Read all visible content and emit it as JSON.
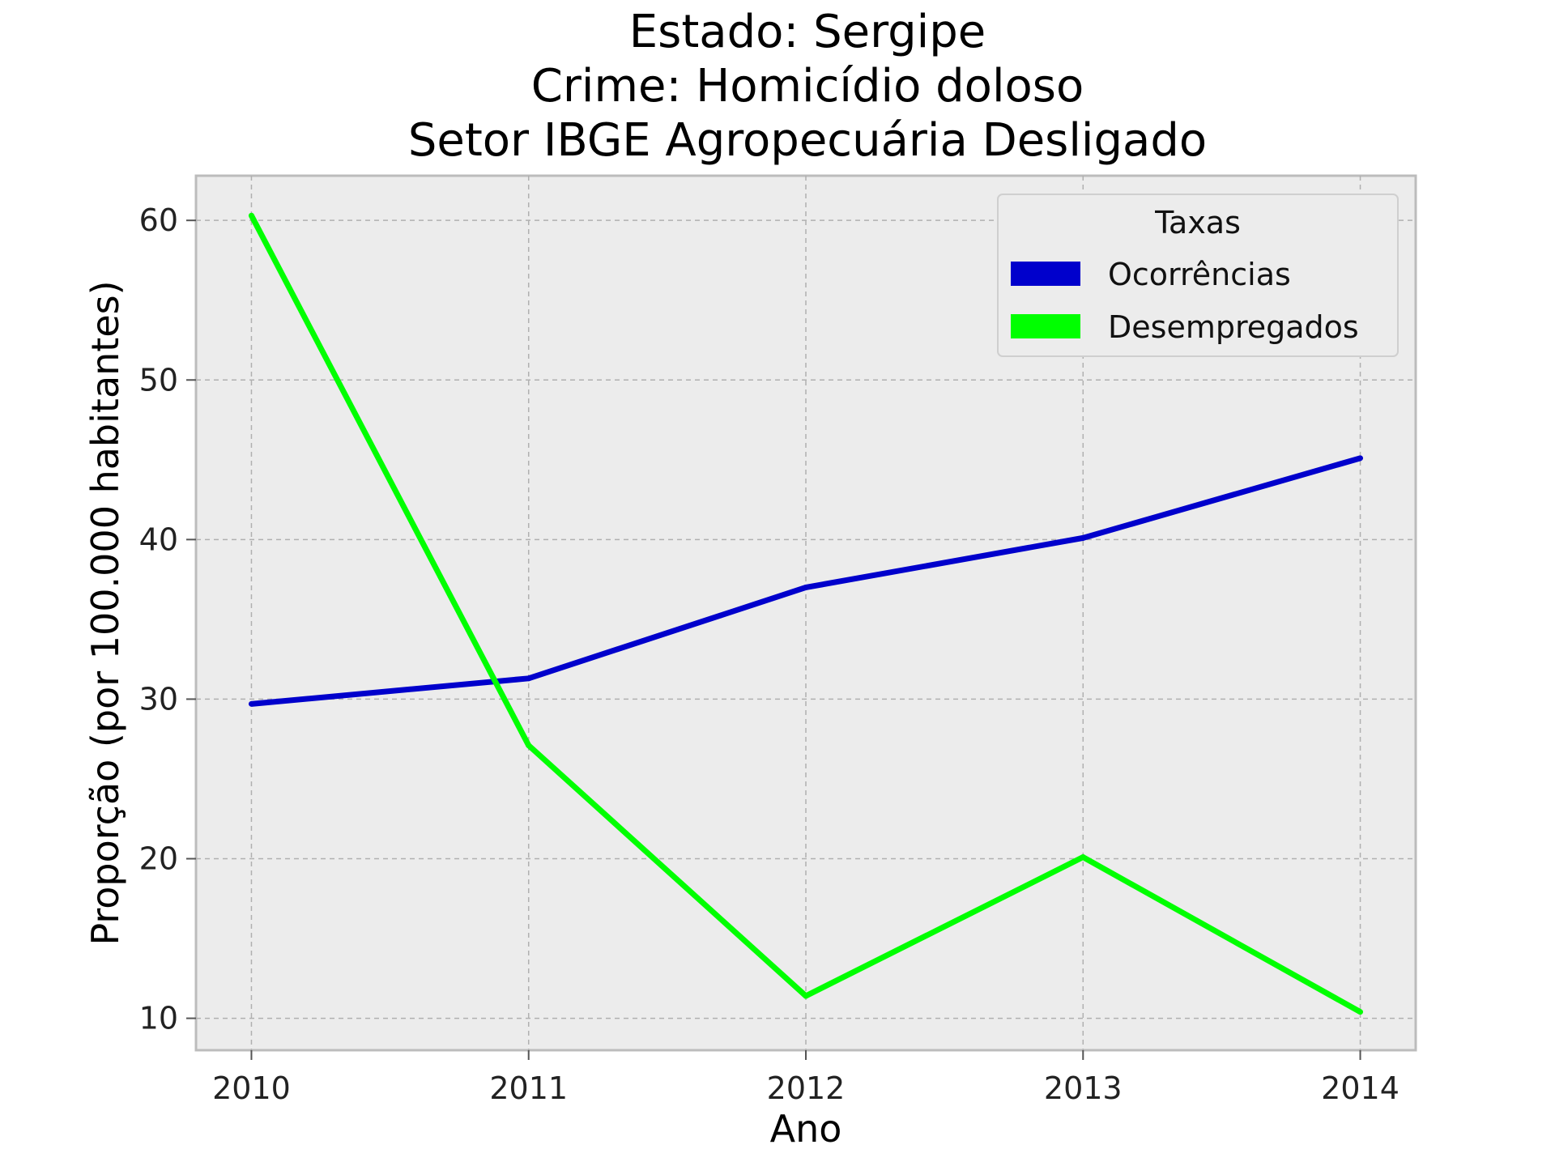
{
  "chart_data": {
    "type": "line",
    "title_lines": [
      "Estado: Sergipe",
      "Crime: Homicídio doloso",
      "Setor IBGE  Agropecuária   Desligado"
    ],
    "xlabel": "Ano",
    "ylabel": "Proporção (por 100.000 habitantes)",
    "x": [
      2010,
      2011,
      2012,
      2013,
      2014
    ],
    "x_tick_labels": [
      "2010",
      "2011",
      "2012",
      "2013",
      "2014"
    ],
    "y_ticks": [
      10,
      20,
      30,
      40,
      50,
      60
    ],
    "y_tick_labels": [
      "10",
      "20",
      "30",
      "40",
      "50",
      "60"
    ],
    "xlim": [
      2009.8,
      2014.2
    ],
    "ylim": [
      8.0,
      62.8
    ],
    "grid": true,
    "legend": {
      "title": "Taxas",
      "placement": "top-right"
    },
    "series": [
      {
        "name": "Ocorrências",
        "color": "#0000cc",
        "values": [
          29.7,
          31.3,
          37.0,
          40.1,
          45.1
        ]
      },
      {
        "name": "Desempregados",
        "color": "#00ff00",
        "values": [
          60.3,
          27.1,
          11.4,
          20.1,
          10.4
        ]
      }
    ],
    "plot_background": "#ececec"
  }
}
